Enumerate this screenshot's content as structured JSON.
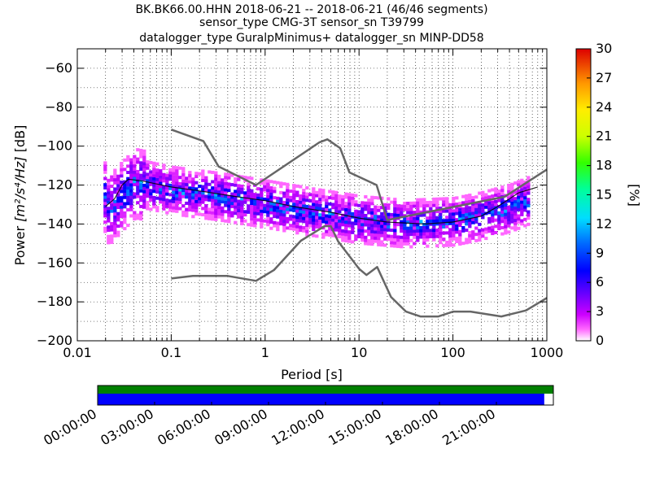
{
  "title": {
    "line1": "BK.BK66.00.HHN   2018-06-21 -- 2018-06-21  (46/46 segments)",
    "line2": "sensor_type CMG-3T sensor_sn T39799",
    "line3": "datalogger_type GuralpMinimus+ datalogger_sn MINP-DD58"
  },
  "chart_data": {
    "type": "heatmap",
    "x_scale": "log",
    "xlim": [
      0.01,
      1000
    ],
    "ylim": [
      -200,
      -50
    ],
    "xlabel": "Period [s]",
    "ylabel_prefix": "Power ",
    "ylabel_units": "[m²/s⁴/Hz]",
    "ylabel_suffix": " [dB]",
    "x_ticks": [
      0.01,
      0.1,
      1,
      10,
      100,
      1000
    ],
    "x_tick_labels": [
      "0.01",
      "0.1",
      "1",
      "10",
      "100",
      "1000"
    ],
    "y_ticks": [
      -200,
      -180,
      -160,
      -140,
      -120,
      -100,
      -80,
      -60
    ],
    "y_tick_labels": [
      "−200",
      "−180",
      "−160",
      "−140",
      "−120",
      "−100",
      "−80",
      "−60"
    ],
    "grid": true,
    "colorbar": {
      "label": "[%]",
      "range": [
        0,
        30
      ],
      "ticks": [
        0,
        3,
        6,
        9,
        12,
        15,
        18,
        21,
        24,
        27,
        30
      ],
      "tick_labels": [
        "0",
        "3",
        "6",
        "9",
        "12",
        "15",
        "18",
        "21",
        "24",
        "27",
        "30"
      ]
    },
    "noise_models": [
      {
        "name": "NHNM",
        "color": "#666666",
        "points": [
          [
            0.1,
            -91.5
          ],
          [
            0.22,
            -97.4
          ],
          [
            0.32,
            -110.5
          ],
          [
            0.8,
            -120
          ],
          [
            3.8,
            -98
          ],
          [
            4.6,
            -96.5
          ],
          [
            6.3,
            -101
          ],
          [
            7.9,
            -113.5
          ],
          [
            15.4,
            -120
          ],
          [
            20,
            -138
          ],
          [
            354.8,
            -126
          ],
          [
            1000,
            -112
          ]
        ]
      },
      {
        "name": "NLNM",
        "color": "#666666",
        "points": [
          [
            0.1,
            -168
          ],
          [
            0.17,
            -166.7
          ],
          [
            0.4,
            -166.7
          ],
          [
            0.8,
            -169.2
          ],
          [
            1.24,
            -163.7
          ],
          [
            2.4,
            -148.6
          ],
          [
            4.3,
            -141.1
          ],
          [
            5.0,
            -141.1
          ],
          [
            6.0,
            -149
          ],
          [
            10,
            -163
          ],
          [
            12,
            -166.2
          ],
          [
            15.6,
            -162.1
          ],
          [
            21.9,
            -177.5
          ],
          [
            31.6,
            -185
          ],
          [
            45,
            -187.5
          ],
          [
            70,
            -187.5
          ],
          [
            101,
            -185
          ],
          [
            154,
            -185
          ],
          [
            328,
            -187.5
          ],
          [
            600,
            -184.4
          ],
          [
            1000,
            -178
          ]
        ]
      }
    ],
    "median": {
      "color": "#000000",
      "points": [
        [
          0.02,
          -131
        ],
        [
          0.025,
          -127
        ],
        [
          0.03,
          -120
        ],
        [
          0.035,
          -117
        ],
        [
          0.05,
          -118
        ],
        [
          0.1,
          -121
        ],
        [
          0.2,
          -123
        ],
        [
          0.5,
          -126
        ],
        [
          1,
          -128
        ],
        [
          2,
          -131
        ],
        [
          5,
          -134
        ],
        [
          10,
          -137
        ],
        [
          20,
          -139
        ],
        [
          50,
          -140
        ],
        [
          100,
          -139
        ],
        [
          200,
          -136
        ],
        [
          300,
          -131
        ],
        [
          500,
          -124
        ],
        [
          800,
          -121
        ]
      ]
    },
    "density_band": {
      "center": [
        [
          0.02,
          -133
        ],
        [
          0.03,
          -124
        ],
        [
          0.04,
          -118
        ],
        [
          0.1,
          -122
        ],
        [
          0.3,
          -125
        ],
        [
          1,
          -129
        ],
        [
          3,
          -133
        ],
        [
          10,
          -137
        ],
        [
          30,
          -139
        ],
        [
          100,
          -138
        ],
        [
          200,
          -135
        ],
        [
          400,
          -131
        ],
        [
          800,
          -125
        ]
      ],
      "spread_db": 12
    },
    "time_axis": {
      "tick_labels": [
        "00:00:00",
        "03:00:00",
        "06:00:00",
        "09:00:00",
        "12:00:00",
        "15:00:00",
        "18:00:00",
        "21:00:00"
      ],
      "bars": [
        {
          "name": "data_available",
          "color": "#008000",
          "coverage": 1.0
        },
        {
          "name": "psd_coverage",
          "color": "#0000ff",
          "coverage": 0.98
        }
      ]
    }
  }
}
